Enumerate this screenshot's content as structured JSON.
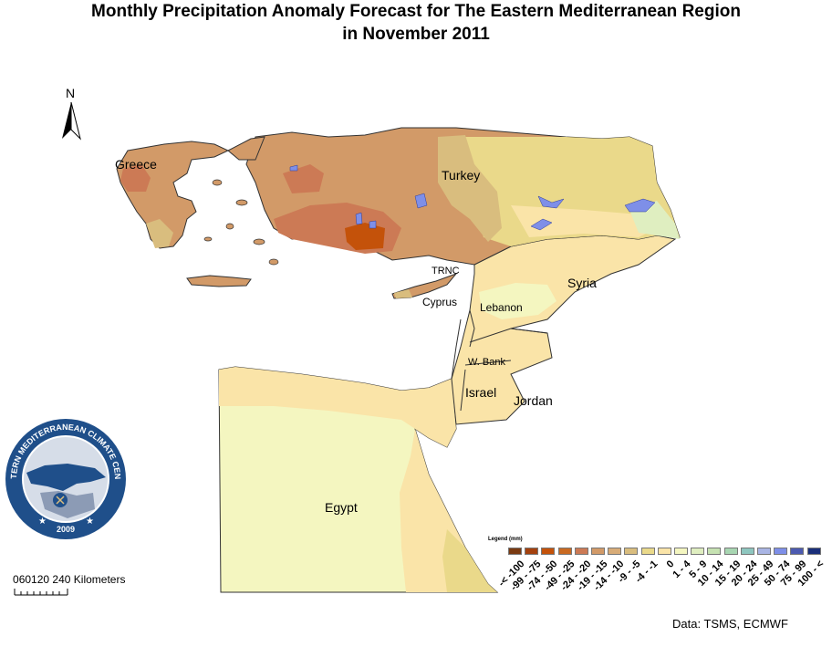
{
  "title": {
    "line1": "Monthly Precipitation Anomaly Forecast for  The Eastern Mediterranean Region",
    "line2": "in November 2011"
  },
  "north_arrow": {
    "letter": "N",
    "icon": "north-arrow-icon"
  },
  "map_labels": {
    "greece": "Greece",
    "turkey": "Turkey",
    "trnc": "TRNC",
    "cyprus": "Cyprus",
    "syria": "Syria",
    "lebanon": "Lebanon",
    "wbank": "W. Bank",
    "israel": "Israel",
    "jordan": "Jordan",
    "egypt": "Egypt"
  },
  "logo": {
    "text_top": "EASTERN MEDITERRANEAN CLIMATE CENTRE",
    "year": "2009",
    "icon": "emcc-logo-icon"
  },
  "scale": {
    "ticks": [
      "0",
      "60",
      "120",
      "240"
    ],
    "unit": "Kilometers"
  },
  "legend": {
    "title": "Legend (mm)",
    "classes": [
      {
        "label": "-< -100",
        "color": "#7a3a12"
      },
      {
        "label": "-99 - -75",
        "color": "#a4410e"
      },
      {
        "label": "-74 - -50",
        "color": "#c4520a"
      },
      {
        "label": "-49 - -25",
        "color": "#c96a22"
      },
      {
        "label": "-24 - -20",
        "color": "#cc7a55"
      },
      {
        "label": "-19 - -15",
        "color": "#d29a68"
      },
      {
        "label": "-14 - -10",
        "color": "#d8ac78"
      },
      {
        "label": "-9 - -5",
        "color": "#d9bd7e"
      },
      {
        "label": "-4 - -1",
        "color": "#ead98a"
      },
      {
        "label": "0",
        "color": "#fae4a8"
      },
      {
        "label": "1 - 4",
        "color": "#f4f6c0"
      },
      {
        "label": "5 - 9",
        "color": "#dfeec0"
      },
      {
        "label": "10 - 14",
        "color": "#c6e2b2"
      },
      {
        "label": "15 - 19",
        "color": "#a8d6b2"
      },
      {
        "label": "20 - 24",
        "color": "#8ec6bf"
      },
      {
        "label": "25 - 49",
        "color": "#a9b5e4"
      },
      {
        "label": "50 - 74",
        "color": "#7e8fe8"
      },
      {
        "label": "75 - 99",
        "color": "#4c5ab0"
      },
      {
        "label": "100 - <",
        "color": "#1a2f7a"
      }
    ]
  },
  "credit": "Data:  TSMS, ECMWF"
}
